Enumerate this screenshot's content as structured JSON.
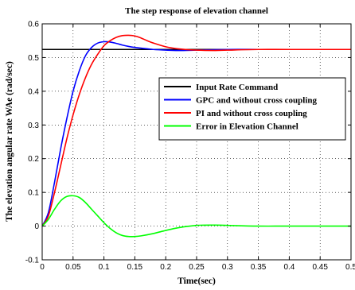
{
  "chart_data": {
    "type": "line",
    "title": "The step response of elevation channel",
    "xlabel": "Time(sec)",
    "ylabel": "The elevation angular rate WAe (rad/sec)",
    "xlim": [
      0,
      0.5
    ],
    "ylim": [
      -0.1,
      0.6
    ],
    "x_ticks": [
      "0",
      "0.05",
      "0.1",
      "0.15",
      "0.2",
      "0.25",
      "0.3",
      "0.35",
      "0.4",
      "0.45",
      "0.5"
    ],
    "y_ticks": [
      "-0.1",
      "0",
      "0.1",
      "0.2",
      "0.3",
      "0.4",
      "0.5",
      "0.6"
    ],
    "grid": true,
    "legend_position": "center-right",
    "series": [
      {
        "name": "Input Rate Command",
        "color": "#000000",
        "x": [
          0,
          0.5
        ],
        "y": [
          0.524,
          0.524
        ]
      },
      {
        "name": "GPC and without cross coupling",
        "color": "#0000ff",
        "x": [
          0,
          0.01,
          0.02,
          0.03,
          0.04,
          0.05,
          0.06,
          0.07,
          0.08,
          0.09,
          0.1,
          0.11,
          0.12,
          0.13,
          0.14,
          0.15,
          0.16,
          0.18,
          0.2,
          0.22,
          0.25,
          0.3,
          0.35,
          0.4,
          0.5
        ],
        "y": [
          0,
          0.04,
          0.13,
          0.23,
          0.32,
          0.4,
          0.46,
          0.505,
          0.53,
          0.543,
          0.547,
          0.546,
          0.542,
          0.537,
          0.533,
          0.53,
          0.528,
          0.524,
          0.522,
          0.521,
          0.522,
          0.524,
          0.524,
          0.524,
          0.524
        ]
      },
      {
        "name": "PI and without cross coupling",
        "color": "#ff0000",
        "x": [
          0,
          0.01,
          0.02,
          0.03,
          0.04,
          0.05,
          0.06,
          0.07,
          0.08,
          0.09,
          0.1,
          0.11,
          0.12,
          0.13,
          0.14,
          0.15,
          0.16,
          0.17,
          0.18,
          0.2,
          0.22,
          0.25,
          0.28,
          0.3,
          0.35,
          0.4,
          0.5
        ],
        "y": [
          0,
          0.03,
          0.1,
          0.18,
          0.26,
          0.33,
          0.39,
          0.44,
          0.48,
          0.51,
          0.535,
          0.55,
          0.56,
          0.565,
          0.566,
          0.564,
          0.558,
          0.55,
          0.543,
          0.532,
          0.526,
          0.522,
          0.521,
          0.522,
          0.524,
          0.524,
          0.524
        ]
      },
      {
        "name": "Error in Elevation Channel",
        "color": "#00ff00",
        "x": [
          0,
          0.01,
          0.02,
          0.03,
          0.04,
          0.05,
          0.06,
          0.07,
          0.08,
          0.09,
          0.1,
          0.11,
          0.12,
          0.13,
          0.14,
          0.15,
          0.16,
          0.18,
          0.2,
          0.22,
          0.25,
          0.28,
          0.3,
          0.35,
          0.4,
          0.5
        ],
        "y": [
          0,
          0.02,
          0.05,
          0.075,
          0.088,
          0.09,
          0.085,
          0.07,
          0.05,
          0.03,
          0.01,
          -0.007,
          -0.02,
          -0.028,
          -0.031,
          -0.031,
          -0.029,
          -0.022,
          -0.013,
          -0.005,
          0.002,
          0.003,
          0.002,
          0.0,
          0.0,
          0.0
        ]
      }
    ]
  }
}
